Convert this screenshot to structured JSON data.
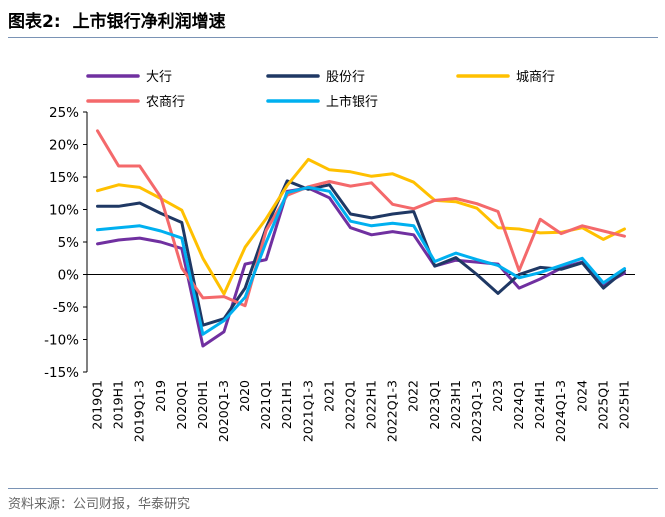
{
  "figure": {
    "label": "图表2:",
    "title": "上市银行净利润增速",
    "source": "资料来源：公司财报，华泰研究"
  },
  "chart_data": {
    "type": "line",
    "categories": [
      "2019Q1",
      "2019H1",
      "2019Q1-3",
      "2019",
      "2020Q1",
      "2020H1",
      "2020Q1-3",
      "2020",
      "2021Q1",
      "2021H1",
      "2021Q1-3",
      "2021",
      "2022Q1",
      "2022H1",
      "2022Q1-3",
      "2022",
      "2023Q1",
      "2023H1",
      "2023Q1-3",
      "2023",
      "2024Q1",
      "2024H1",
      "2024Q1-3",
      "2024",
      "2025Q1",
      "2025H1"
    ],
    "ylim": [
      -15,
      25
    ],
    "yticks": [
      -15,
      -10,
      -5,
      0,
      5,
      10,
      15,
      20,
      25
    ],
    "ytick_labels": [
      "-15%",
      "-10%",
      "-5%",
      "0%",
      "5%",
      "10%",
      "15%",
      "20%",
      "25%"
    ],
    "legend_position": "top",
    "series": [
      {
        "name": "大行",
        "color": "#7030a0",
        "values": [
          4.7,
          5.3,
          5.6,
          5.0,
          4.0,
          -11.0,
          -8.8,
          1.6,
          2.3,
          12.8,
          13.3,
          11.8,
          7.2,
          6.1,
          6.6,
          6.1,
          1.3,
          2.2,
          1.9,
          1.6,
          -2.1,
          -0.7,
          1.0,
          1.9,
          -1.6,
          0.2
        ]
      },
      {
        "name": "股份行",
        "color": "#1f3864",
        "values": [
          10.5,
          10.5,
          11.0,
          9.4,
          8.0,
          -7.8,
          -6.8,
          -2.1,
          7.2,
          14.4,
          13.1,
          13.8,
          9.3,
          8.7,
          9.3,
          9.7,
          1.3,
          2.6,
          0.0,
          -2.9,
          0.0,
          1.1,
          0.8,
          1.8,
          -2.1,
          0.6
        ]
      },
      {
        "name": "城商行",
        "color": "#ffc000",
        "values": [
          12.9,
          13.8,
          13.4,
          11.7,
          9.9,
          2.5,
          -3.0,
          4.2,
          8.6,
          13.7,
          17.7,
          16.1,
          15.8,
          15.1,
          15.5,
          14.2,
          11.4,
          11.2,
          10.2,
          7.2,
          7.0,
          6.4,
          6.5,
          7.2,
          5.4,
          7.0
        ]
      },
      {
        "name": "农商行",
        "color": "#f4696b",
        "values": [
          22.1,
          16.7,
          16.7,
          11.9,
          1.0,
          -3.6,
          -3.4,
          -4.8,
          6.8,
          12.2,
          13.5,
          14.3,
          13.6,
          14.1,
          10.8,
          10.1,
          11.4,
          11.7,
          10.9,
          9.7,
          0.6,
          8.5,
          6.3,
          7.5,
          6.7,
          5.9
        ]
      },
      {
        "name": "上市银行",
        "color": "#00b0f0",
        "values": [
          6.9,
          7.2,
          7.5,
          6.7,
          5.6,
          -9.2,
          -7.1,
          -3.5,
          5.0,
          12.6,
          13.4,
          12.8,
          8.2,
          7.5,
          7.9,
          7.5,
          2.0,
          3.3,
          2.3,
          1.4,
          -0.5,
          0.3,
          1.4,
          2.5,
          -1.3,
          0.9
        ]
      }
    ]
  }
}
